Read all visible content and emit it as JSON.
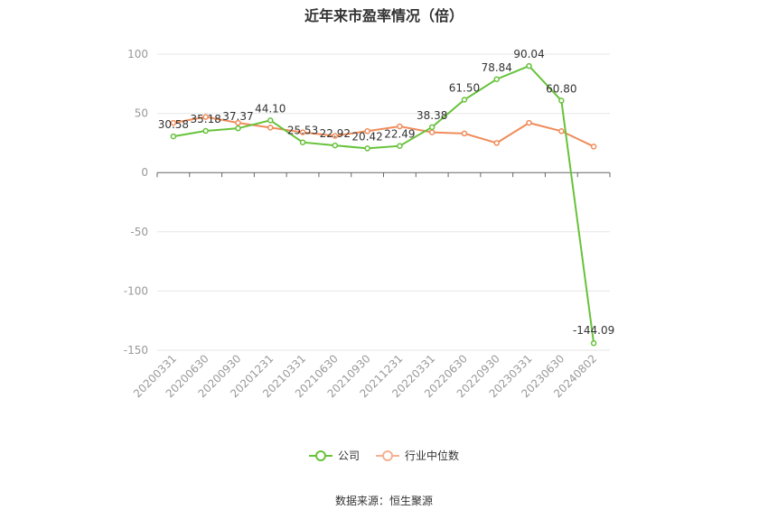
{
  "chart_data": {
    "type": "line",
    "title": "近年来市盈率情况（倍）",
    "categories": [
      "20200331",
      "20200630",
      "20200930",
      "20201231",
      "20210331",
      "20210630",
      "20210930",
      "20211231",
      "20220331",
      "20220630",
      "20220930",
      "20230331",
      "20230630",
      "20240802"
    ],
    "series": [
      {
        "name": "公司",
        "color": "#67c23a",
        "values": [
          30.58,
          35.18,
          37.37,
          44.1,
          25.53,
          22.92,
          20.42,
          22.49,
          38.38,
          61.5,
          78.84,
          90.04,
          60.8,
          -144.09
        ],
        "labels": [
          "30.58",
          "35.18",
          "37.37",
          "44.10",
          "25.53",
          "22.92",
          "20.42",
          "22.49",
          "38.38",
          "61.50",
          "78.84",
          "90.04",
          "60.80",
          "-144.09"
        ]
      },
      {
        "name": "行业中位数",
        "color": "#f08c5a",
        "values": [
          42,
          47,
          42,
          38,
          34,
          31,
          35,
          39,
          34,
          33,
          25,
          42,
          35,
          22
        ]
      }
    ],
    "yticks": [
      100,
      50,
      0,
      -50,
      -100,
      -150
    ],
    "ylim": [
      -150,
      100
    ],
    "grid": true,
    "legend_position": "bottom"
  },
  "legend": {
    "company": "公司",
    "industry": "行业中位数"
  },
  "source": "数据来源：恒生聚源"
}
